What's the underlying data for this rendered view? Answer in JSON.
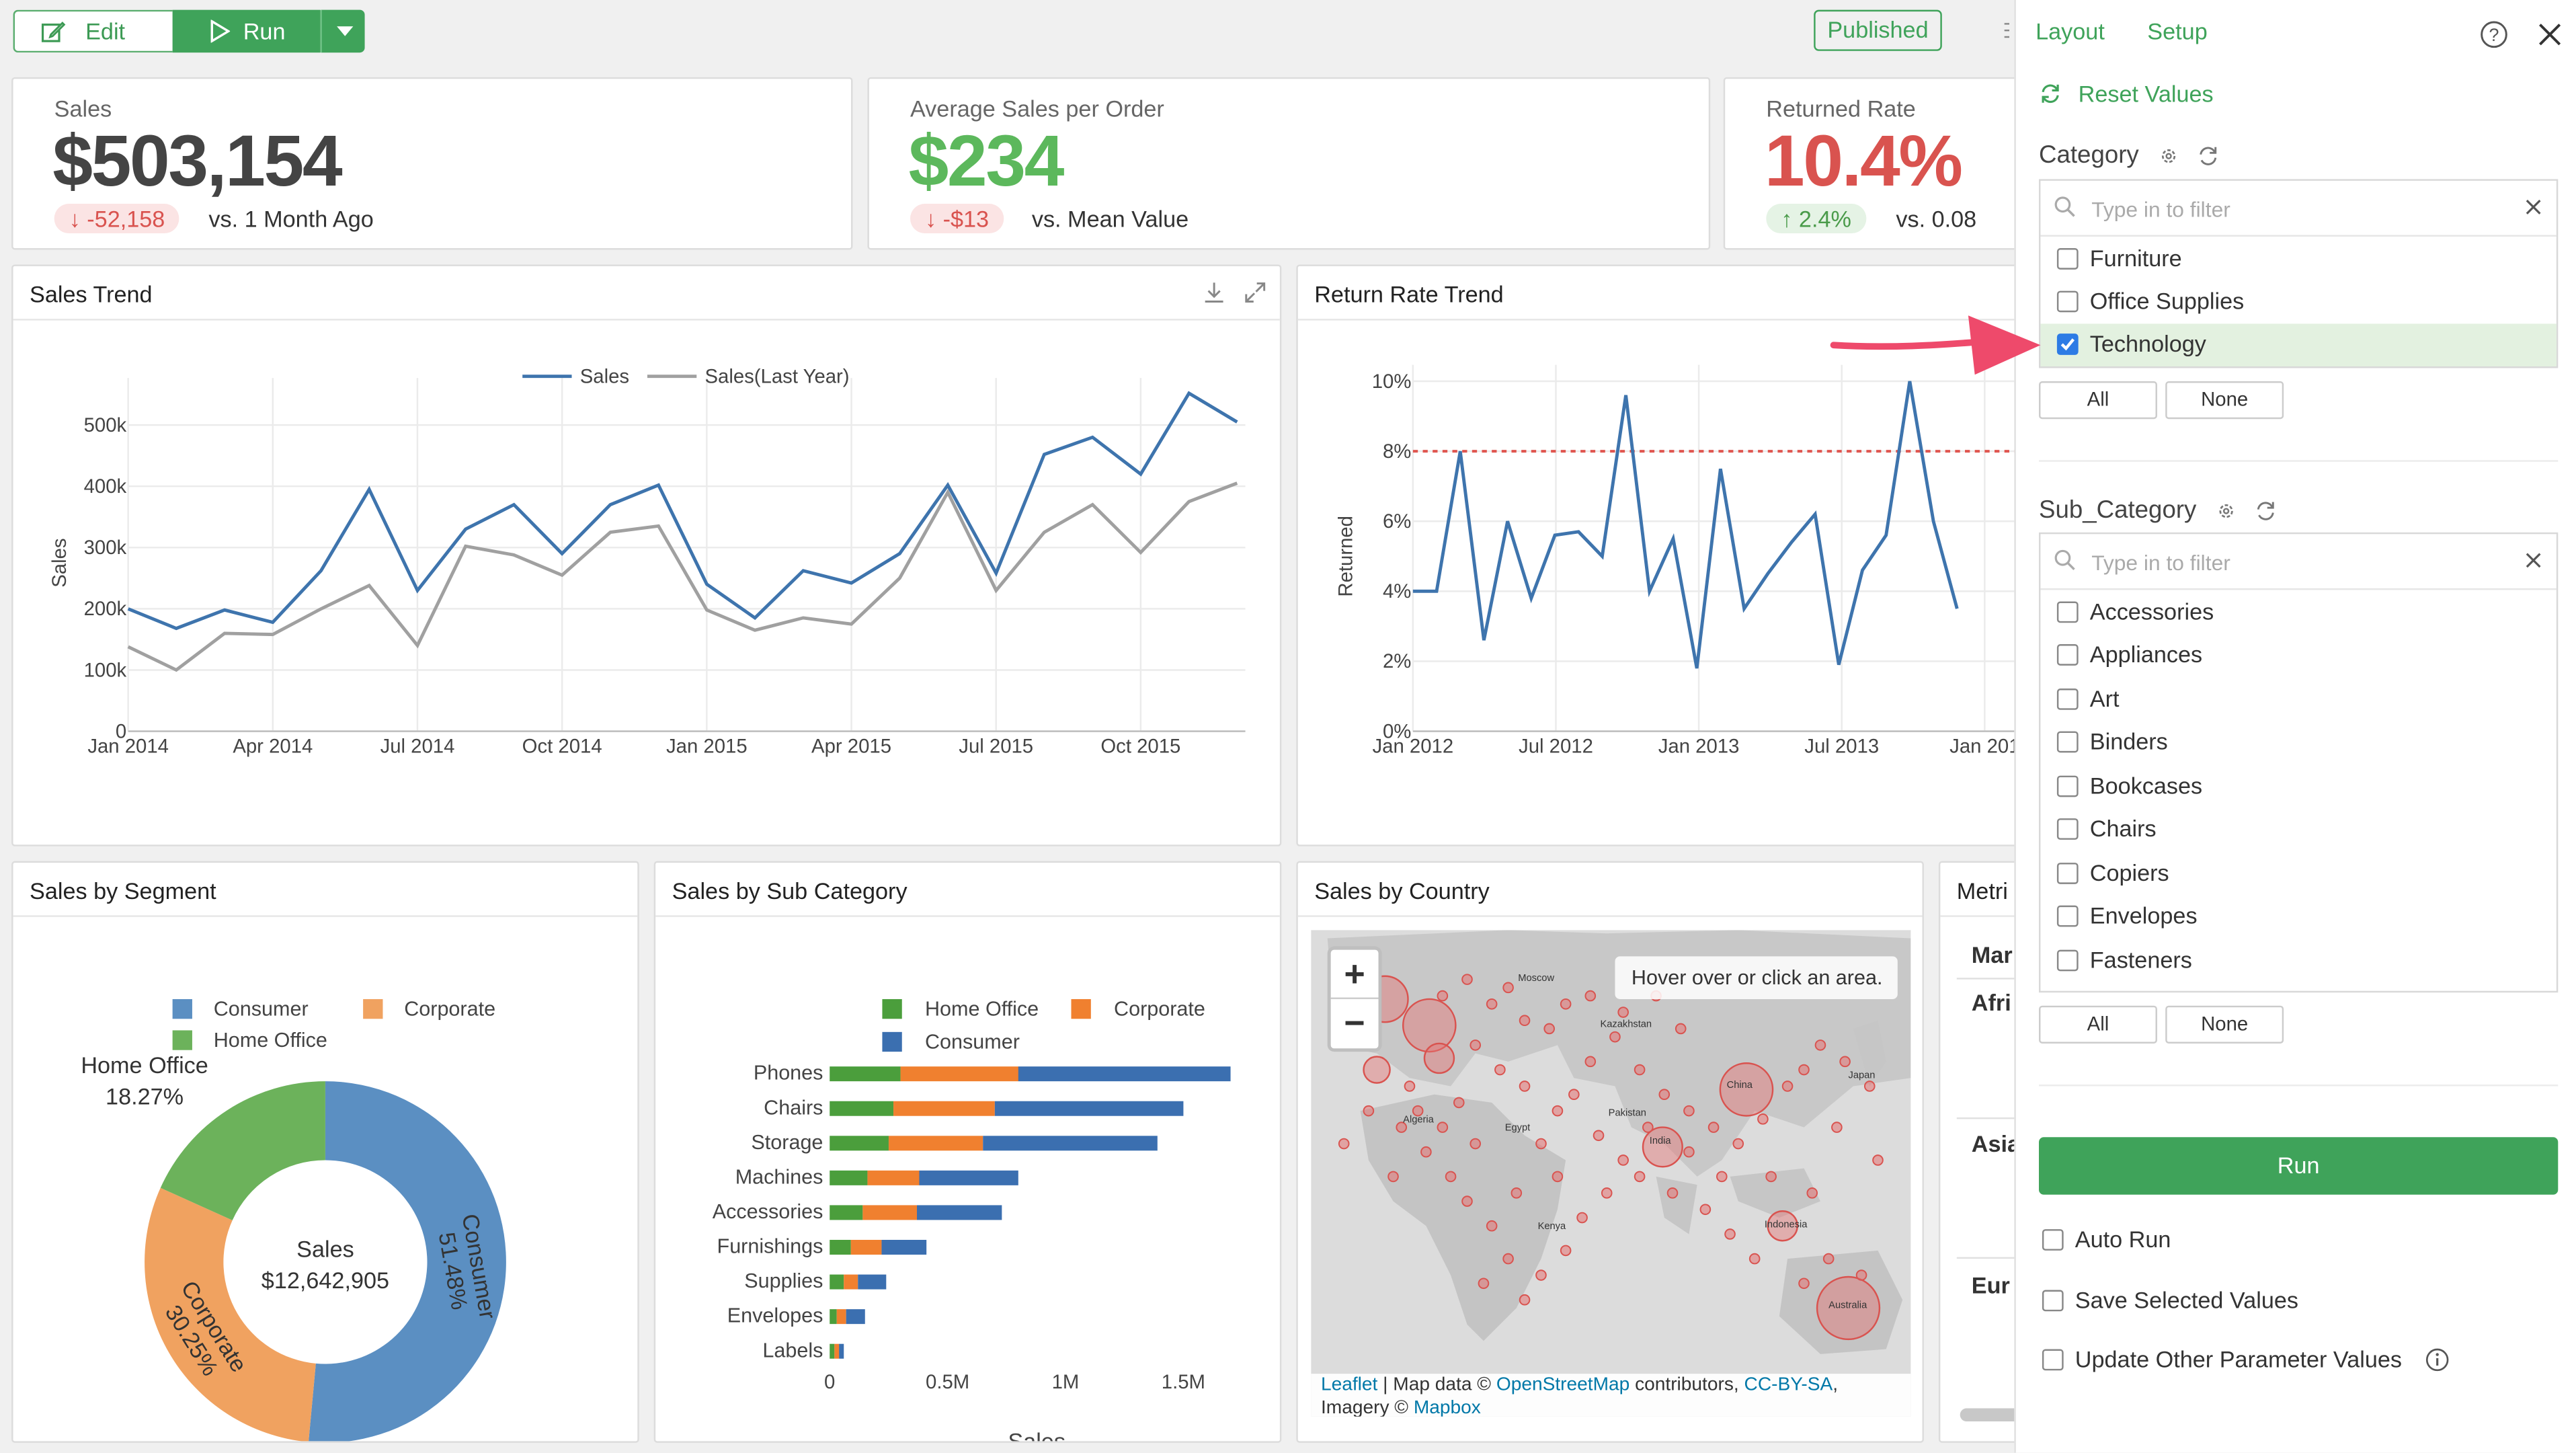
{
  "toolbar": {
    "edit_label": "Edit",
    "run_label": "Run",
    "published_label": "Published"
  },
  "kpis": [
    {
      "label": "Sales",
      "value": "$503,154",
      "value_color": "#444444",
      "delta": "-52,158",
      "delta_dir": "down",
      "vs": "vs. 1 Month Ago"
    },
    {
      "label": "Average Sales per Order",
      "value": "$234",
      "value_color": "#5cb85c",
      "delta": "-$13",
      "delta_dir": "down",
      "vs": "vs. Mean Value"
    },
    {
      "label": "Returned Rate",
      "value": "10.4%",
      "value_color": "#d9534f",
      "delta": "2.4%",
      "delta_dir": "up",
      "vs": "vs. 0.08"
    }
  ],
  "sales_trend": {
    "title": "Sales Trend",
    "chart_data": {
      "type": "line",
      "ylabel": "Sales",
      "ylim": [
        0,
        550000
      ],
      "y_ticks": [
        "0",
        "100k",
        "200k",
        "300k",
        "400k",
        "500k"
      ],
      "x_ticks": [
        "Jan 2014",
        "Apr 2014",
        "Jul 2014",
        "Oct 2014",
        "Jan 2015",
        "Apr 2015",
        "Jul 2015",
        "Oct 2015"
      ],
      "legend": "top-center",
      "series": [
        {
          "name": "Sales",
          "color": "#3e74ad",
          "values": [
            200000,
            168000,
            198000,
            178000,
            262000,
            395000,
            230000,
            330000,
            370000,
            290000,
            370000,
            402000,
            240000,
            185000,
            262000,
            242000,
            290000,
            402000,
            258000,
            452000,
            480000,
            420000,
            552000,
            505000
          ]
        },
        {
          "name": "Sales(Last Year)",
          "color": "#a0a0a0",
          "values": [
            138000,
            100000,
            160000,
            158000,
            200000,
            238000,
            140000,
            302000,
            288000,
            255000,
            325000,
            335000,
            198000,
            165000,
            185000,
            175000,
            250000,
            390000,
            230000,
            325000,
            370000,
            292000,
            375000,
            405000
          ]
        }
      ]
    }
  },
  "return_trend": {
    "title": "Return Rate Trend",
    "chart_data": {
      "type": "line",
      "ylabel": "Returned",
      "ylim": [
        0,
        10
      ],
      "y_ticks": [
        "0%",
        "2%",
        "4%",
        "6%",
        "8%",
        "10%"
      ],
      "x_ticks": [
        "Jan 2012",
        "Jul 2012",
        "Jan 2013",
        "Jul 2013",
        "Jan 201"
      ],
      "reference_line": 8,
      "series": [
        {
          "name": "Returned",
          "color": "#3e74ad",
          "values": [
            4.0,
            4.0,
            8.0,
            2.6,
            6.0,
            3.8,
            5.6,
            5.7,
            5.0,
            9.6,
            4.0,
            5.5,
            1.8,
            7.5,
            3.5,
            4.5,
            5.4,
            6.2,
            1.9,
            4.6,
            5.6,
            10.0,
            6.0,
            3.5
          ]
        }
      ]
    }
  },
  "segment": {
    "title": "Sales by Segment",
    "chart_data": {
      "type": "pie",
      "legend": "top",
      "center_title": "Sales",
      "center_value": "$12,642,905",
      "slices": [
        {
          "name": "Consumer",
          "value": 51.48,
          "label": "51.48%",
          "color": "#5b8fc2"
        },
        {
          "name": "Corporate",
          "value": 30.25,
          "label": "30.25%",
          "color": "#f0a260"
        },
        {
          "name": "Home Office",
          "value": 18.27,
          "label": "18.27%",
          "color": "#6cb25b"
        }
      ]
    },
    "outside_label_name": "Home Office",
    "outside_label_value": "18.27%"
  },
  "subcat": {
    "title": "Sales by Sub Category",
    "chart_data": {
      "type": "bar",
      "orientation": "horizontal",
      "stacked": true,
      "xlabel": "Sales",
      "x_ticks": [
        "0",
        "0.5M",
        "1M",
        "1.5M"
      ],
      "xlim": [
        0,
        1700000
      ],
      "categories": [
        "Phones",
        "Chairs",
        "Storage",
        "Machines",
        "Accessories",
        "Furnishings",
        "Supplies",
        "Envelopes",
        "Labels"
      ],
      "series": [
        {
          "name": "Home Office",
          "color": "#4b9e3c",
          "values": [
            300000,
            270000,
            250000,
            160000,
            140000,
            90000,
            60000,
            30000,
            20000
          ]
        },
        {
          "name": "Corporate",
          "color": "#f0802f",
          "values": [
            500000,
            430000,
            400000,
            220000,
            230000,
            130000,
            60000,
            40000,
            20000
          ]
        },
        {
          "name": "Consumer",
          "color": "#3b6fb0",
          "values": [
            900000,
            800000,
            740000,
            420000,
            360000,
            190000,
            120000,
            80000,
            20000
          ]
        }
      ]
    }
  },
  "country": {
    "title": "Sales by Country",
    "zoom_in": "+",
    "zoom_out": "−",
    "hint": "Hover over or click an area.",
    "attribution_1": "Leaflet",
    "attribution_2": " | Map data © ",
    "attribution_3": "OpenStreetMap",
    "attribution_4": " contributors, ",
    "attribution_5": "CC-BY-SA",
    "attribution_6": ",",
    "attribution_7": "Imagery © ",
    "attribution_8": "Mapbox",
    "map_labels": [
      "Moscow",
      "Kazakhstan",
      "China",
      "India",
      "Indonesia",
      "Australia",
      "Kenya",
      "Algeria",
      "Egypt",
      "Japan",
      "Pakistan"
    ]
  },
  "metrics": {
    "title": "Metri",
    "rows": [
      "Mar",
      "Afri",
      "Asia",
      "Eur"
    ]
  },
  "panel": {
    "tab_layout": "Layout",
    "tab_setup": "Setup",
    "reset_label": "Reset Values",
    "category": {
      "title": "Category",
      "placeholder": "Type in to filter",
      "options": [
        {
          "label": "Furniture",
          "checked": false
        },
        {
          "label": "Office Supplies",
          "checked": false
        },
        {
          "label": "Technology",
          "checked": true
        }
      ],
      "all": "All",
      "none": "None"
    },
    "subcategory": {
      "title": "Sub_Category",
      "placeholder": "Type in to filter",
      "options": [
        {
          "label": "Accessories",
          "checked": false
        },
        {
          "label": "Appliances",
          "checked": false
        },
        {
          "label": "Art",
          "checked": false
        },
        {
          "label": "Binders",
          "checked": false
        },
        {
          "label": "Bookcases",
          "checked": false
        },
        {
          "label": "Chairs",
          "checked": false
        },
        {
          "label": "Copiers",
          "checked": false
        },
        {
          "label": "Envelopes",
          "checked": false
        },
        {
          "label": "Fasteners",
          "checked": false
        }
      ],
      "all": "All",
      "none": "None"
    },
    "run_label": "Run",
    "auto_run": "Auto Run",
    "save_selected": "Save Selected Values",
    "update_other": "Update Other Parameter Values",
    "accent_color": "#3fa35a"
  }
}
